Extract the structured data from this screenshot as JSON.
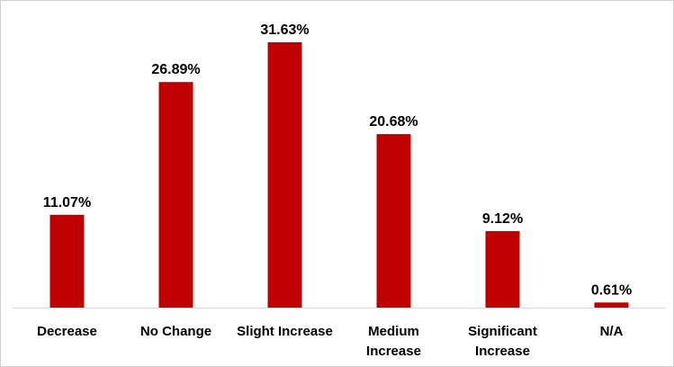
{
  "chart_data": {
    "type": "bar",
    "title": "",
    "xlabel": "",
    "ylabel": "",
    "categories": [
      "Decrease",
      "No Change",
      "Slight Increase",
      "Medium Increase",
      "Significant Increase",
      "N/A"
    ],
    "category_lines": [
      [
        "Decrease"
      ],
      [
        "No Change"
      ],
      [
        "Slight Increase"
      ],
      [
        "Medium",
        "Increase"
      ],
      [
        "Significant",
        "Increase"
      ],
      [
        "N/A"
      ]
    ],
    "values": [
      11.07,
      26.89,
      31.63,
      20.68,
      9.12,
      0.61
    ],
    "data_labels": [
      "11.07%",
      "26.89%",
      "31.63%",
      "20.68%",
      "9.12%",
      "0.61%"
    ],
    "ylim": [
      0,
      31.63
    ],
    "grid": false,
    "legend": "none",
    "colors": {
      "bar": "#c00000",
      "axis": "#d9d9d9",
      "text": "#000000"
    }
  }
}
